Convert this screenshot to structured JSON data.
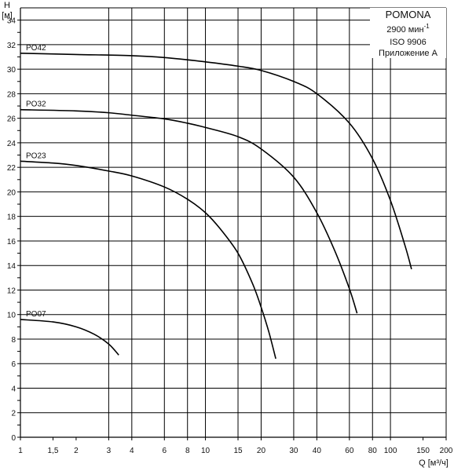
{
  "chart_data": {
    "type": "line",
    "title": "",
    "ylabel": "H",
    "ylabel_unit": "[м]",
    "xlabel": "Q [м³/ч]",
    "x_scale": "log",
    "xlim": [
      1,
      200
    ],
    "ylim": [
      0,
      35
    ],
    "grid": true,
    "x_ticks": [
      {
        "value": 1,
        "label": "1"
      },
      {
        "value": 1.5,
        "label": "1,5"
      },
      {
        "value": 2,
        "label": "2"
      },
      {
        "value": 3,
        "label": "3"
      },
      {
        "value": 4,
        "label": "4"
      },
      {
        "value": 6,
        "label": "6"
      },
      {
        "value": 8,
        "label": "8"
      },
      {
        "value": 10,
        "label": "10"
      },
      {
        "value": 15,
        "label": "15"
      },
      {
        "value": 20,
        "label": "20"
      },
      {
        "value": 30,
        "label": "30"
      },
      {
        "value": 40,
        "label": "40"
      },
      {
        "value": 60,
        "label": "60"
      },
      {
        "value": 80,
        "label": "80"
      },
      {
        "value": 100,
        "label": "100"
      },
      {
        "value": 150,
        "label": "150"
      },
      {
        "value": 200,
        "label": "200"
      }
    ],
    "x_gridlines": [
      3,
      4,
      6,
      8,
      10,
      15,
      20,
      30,
      40,
      60,
      80,
      100
    ],
    "y_ticks": [
      0,
      2,
      4,
      6,
      8,
      10,
      12,
      14,
      16,
      18,
      20,
      22,
      24,
      26,
      28,
      30,
      32,
      34
    ],
    "legend": {
      "title": "POMONA",
      "speed": "2900 мин",
      "speed_exp": "-1",
      "standard": "ISO 9906",
      "annex": "Приложение А",
      "placement": "top-right"
    },
    "series": [
      {
        "name": "PO42",
        "x": [
          1,
          2,
          4,
          6,
          10,
          15,
          20,
          30,
          40,
          60,
          80,
          100,
          120,
          130
        ],
        "y": [
          31.3,
          31.2,
          31.1,
          30.95,
          30.6,
          30.25,
          29.9,
          29.0,
          28.0,
          25.6,
          22.7,
          19.3,
          15.6,
          13.7
        ]
      },
      {
        "name": "PO32",
        "x": [
          1,
          2,
          3,
          4,
          6,
          8,
          10,
          15,
          20,
          30,
          40,
          50,
          60,
          66
        ],
        "y": [
          26.7,
          26.6,
          26.45,
          26.25,
          25.95,
          25.6,
          25.25,
          24.5,
          23.5,
          21.2,
          18.3,
          15.2,
          12.1,
          10.1
        ]
      },
      {
        "name": "PO23",
        "x": [
          1,
          1.5,
          2,
          3,
          4,
          6,
          8,
          10,
          12,
          15,
          18,
          20,
          22,
          24
        ],
        "y": [
          22.5,
          22.35,
          22.15,
          21.7,
          21.3,
          20.4,
          19.4,
          18.3,
          17.0,
          15.0,
          12.5,
          10.6,
          8.6,
          6.4
        ]
      },
      {
        "name": "PO07",
        "x": [
          1,
          1.5,
          2,
          2.5,
          3,
          3.4
        ],
        "y": [
          9.6,
          9.4,
          9.0,
          8.4,
          7.6,
          6.7
        ]
      }
    ]
  }
}
